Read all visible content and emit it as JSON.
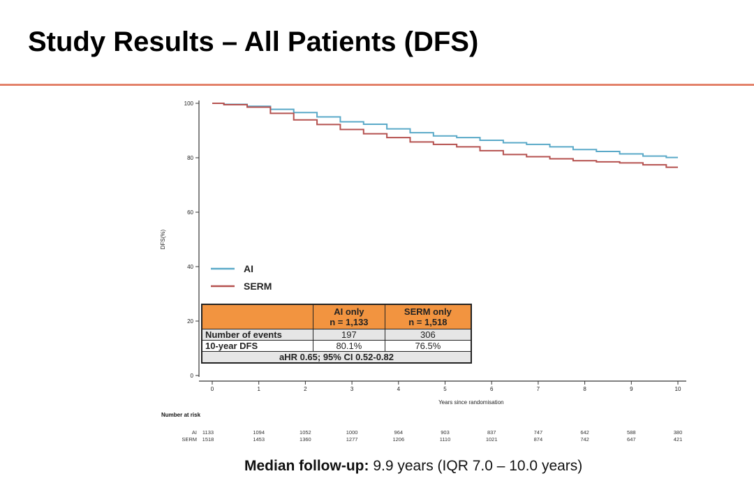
{
  "slide": {
    "title": "Study Results – All Patients (DFS)",
    "footer_label": "Median follow-up:",
    "footer_value": " 9.9 years (IQR 7.0 – 10.0 years)"
  },
  "colors": {
    "accent_rule": "#e3826a",
    "ai": "#5aa9c8",
    "serm": "#b5514f",
    "table_header": "#f29440"
  },
  "chart_data": {
    "type": "line",
    "title": "",
    "xlabel": "Years since randomisation",
    "ylabel": "DFS(%)",
    "xlim": [
      0,
      10
    ],
    "ylim": [
      0,
      100
    ],
    "x_ticks": [
      "0",
      "1",
      "2",
      "3",
      "4",
      "5",
      "6",
      "7",
      "8",
      "9",
      "10"
    ],
    "y_ticks": [
      "0",
      "20",
      "40",
      "60",
      "80",
      "100"
    ],
    "grid": false,
    "legend_position": "left-middle",
    "x": [
      0,
      0.5,
      1,
      1.5,
      2,
      2.5,
      3,
      3.5,
      4,
      4.5,
      5,
      5.5,
      6,
      6.5,
      7,
      7.5,
      8,
      8.5,
      9,
      9.5,
      10
    ],
    "series": [
      {
        "name": "AI",
        "values": [
          100,
          99.6,
          98.9,
          97.8,
          96.6,
          95.0,
          93.2,
          92.3,
          90.6,
          89.2,
          88.0,
          87.4,
          86.4,
          85.5,
          84.9,
          84.0,
          83.0,
          82.3,
          81.4,
          80.6,
          80.1
        ]
      },
      {
        "name": "SERM",
        "values": [
          100,
          99.5,
          98.6,
          96.3,
          93.9,
          92.2,
          90.4,
          88.8,
          87.4,
          85.8,
          84.9,
          84.0,
          82.6,
          81.2,
          80.4,
          79.6,
          78.9,
          78.5,
          78.1,
          77.4,
          76.5
        ]
      }
    ],
    "legend": [
      "AI",
      "SERM"
    ],
    "number_at_risk": {
      "title": "Number at risk",
      "rows": [
        {
          "label": "AI",
          "values": [
            "1133",
            "1094",
            "1052",
            "1000",
            "964",
            "903",
            "837",
            "747",
            "642",
            "588",
            "380"
          ]
        },
        {
          "label": "SERM",
          "values": [
            "1518",
            "1453",
            "1360",
            "1277",
            "1206",
            "1110",
            "1021",
            "874",
            "742",
            "647",
            "421"
          ]
        }
      ]
    },
    "table": {
      "header": [
        "",
        "AI only\nn = 1,133",
        "SERM only\nn = 1,518"
      ],
      "col1_line1": "AI only",
      "col1_line2": "n = 1,133",
      "col2_line1": "SERM only",
      "col2_line2": "n = 1,518",
      "rows": [
        {
          "label": "Number of events",
          "ai": "197",
          "serm": "306"
        },
        {
          "label": "10-year DFS",
          "ai": "80.1%",
          "serm": "76.5%"
        }
      ],
      "footnote": "aHR 0.65; 95% CI 0.52-0.82"
    }
  }
}
